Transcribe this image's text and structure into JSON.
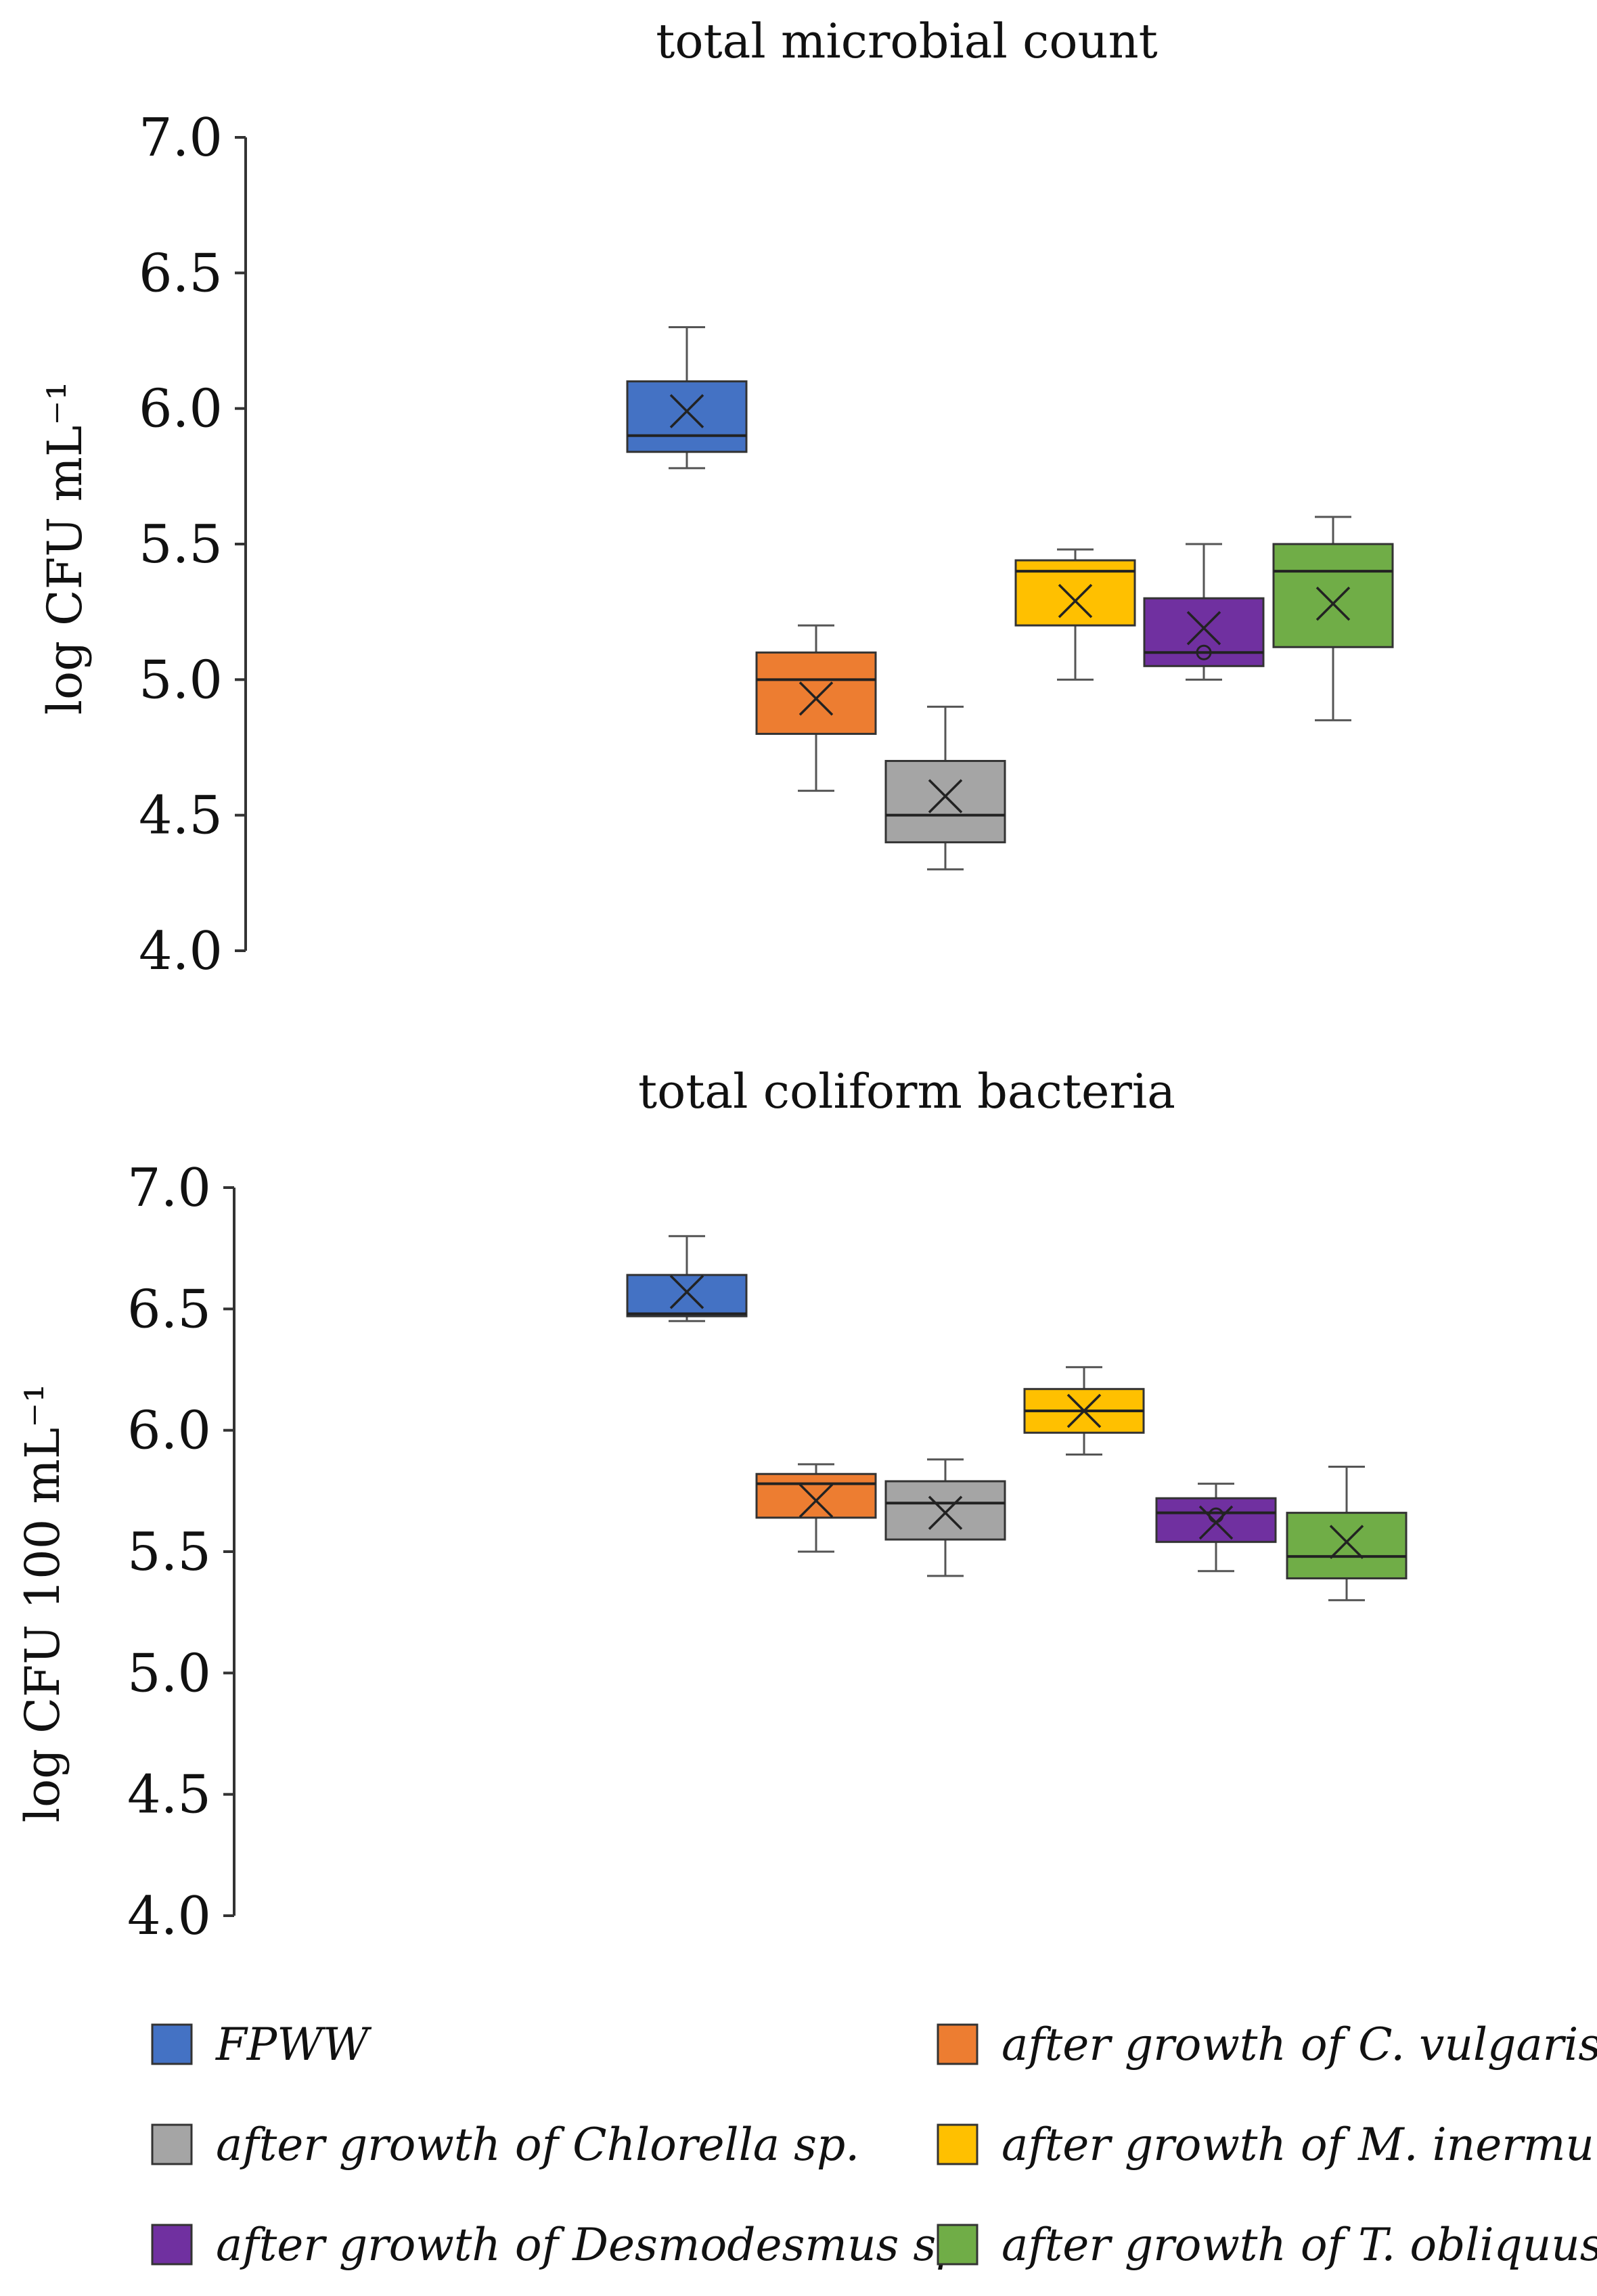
{
  "chart_data": [
    {
      "type": "boxplot",
      "title": "total microbial count",
      "ylabel": "log CFU mL⁻¹",
      "ylim": [
        4.0,
        7.0
      ],
      "yticks": [
        "4.0",
        "4.5",
        "5.0",
        "5.5",
        "6.0",
        "6.5",
        "7.0"
      ],
      "series": [
        {
          "name": "FPWW",
          "min": 5.78,
          "q1": 5.84,
          "median": 5.9,
          "q3": 6.1,
          "max": 6.3,
          "mean": 5.99,
          "outliers": []
        },
        {
          "name": "after growth of C. vulgaris",
          "min": 4.59,
          "q1": 4.8,
          "median": 5.0,
          "q3": 5.1,
          "max": 5.2,
          "mean": 4.93,
          "outliers": []
        },
        {
          "name": "after growth of Chlorella sp.",
          "min": 4.3,
          "q1": 4.4,
          "median": 4.5,
          "q3": 4.7,
          "max": 4.9,
          "mean": 4.57,
          "outliers": []
        },
        {
          "name": "after growth of M. inermum",
          "min": 5.0,
          "q1": 5.2,
          "median": 5.4,
          "q3": 5.44,
          "max": 5.48,
          "mean": 5.29,
          "outliers": []
        },
        {
          "name": "after growth of Desmodesmus sp.",
          "min": 5.0,
          "q1": 5.05,
          "median": 5.1,
          "q3": 5.3,
          "max": 5.5,
          "mean": 5.19,
          "outliers": [
            5.1
          ]
        },
        {
          "name": "after growth of T. obliquus",
          "min": 4.85,
          "q1": 5.12,
          "median": 5.4,
          "q3": 5.5,
          "max": 5.6,
          "mean": 5.28,
          "outliers": []
        }
      ]
    },
    {
      "type": "boxplot",
      "title": "total coliform bacteria",
      "ylabel": "log CFU 100 mL⁻¹",
      "ylim": [
        4.0,
        7.0
      ],
      "yticks": [
        "4.0",
        "4.5",
        "5.0",
        "5.5",
        "6.0",
        "6.5",
        "7.0"
      ],
      "series": [
        {
          "name": "FPWW",
          "min": 6.45,
          "q1": 6.47,
          "median": 6.48,
          "q3": 6.64,
          "max": 6.8,
          "mean": 6.57,
          "outliers": []
        },
        {
          "name": "after growth of C. vulgaris",
          "min": 5.5,
          "q1": 5.64,
          "median": 5.78,
          "q3": 5.82,
          "max": 5.86,
          "mean": 5.71,
          "outliers": []
        },
        {
          "name": "after growth of Chlorella sp.",
          "min": 5.4,
          "q1": 5.55,
          "median": 5.7,
          "q3": 5.79,
          "max": 5.88,
          "mean": 5.66,
          "outliers": []
        },
        {
          "name": "after growth of M. inermum",
          "min": 5.9,
          "q1": 5.99,
          "median": 6.08,
          "q3": 6.17,
          "max": 6.26,
          "mean": 6.08,
          "outliers": []
        },
        {
          "name": "after growth of Desmodesmus sp.",
          "min": 5.42,
          "q1": 5.54,
          "median": 5.66,
          "q3": 5.72,
          "max": 5.78,
          "mean": 5.62,
          "outliers": [
            5.65
          ]
        },
        {
          "name": "after growth of T. obliquus",
          "min": 5.3,
          "q1": 5.39,
          "median": 5.48,
          "q3": 5.66,
          "max": 5.85,
          "mean": 5.54,
          "outliers": []
        }
      ]
    }
  ],
  "legend": {
    "items": [
      {
        "label": "FPWW",
        "color": "#4472c4"
      },
      {
        "label": "after growth of C. vulgaris",
        "color": "#ed7d31"
      },
      {
        "label": "after growth of Chlorella sp.",
        "color": "#a5a5a5"
      },
      {
        "label": "after growth of M. inermum",
        "color": "#ffc000"
      },
      {
        "label": "after growth of Desmodesmus sp.",
        "color": "#7030a0"
      },
      {
        "label": "after growth of T. obliquus",
        "color": "#70ad47"
      }
    ]
  },
  "colors": [
    "#4472c4",
    "#ed7d31",
    "#a5a5a5",
    "#ffc000",
    "#7030a0",
    "#70ad47"
  ]
}
